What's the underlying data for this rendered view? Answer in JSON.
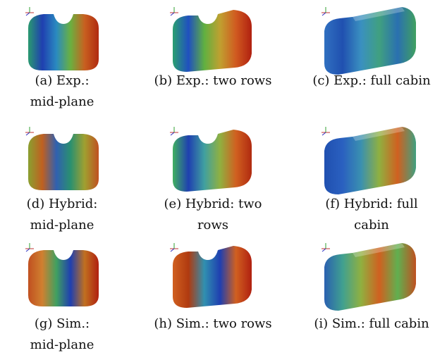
{
  "panels": [
    {
      "lines": [
        "(a) Exp.:",
        "mid-plane"
      ]
    },
    {
      "lines": [
        "(b) Exp.: two rows"
      ]
    },
    {
      "lines": [
        "(c) Exp.: full cabin"
      ]
    },
    {
      "lines": [
        "(d) Hybrid:",
        "mid-plane"
      ]
    },
    {
      "lines": [
        "(e) Hybrid: two",
        "rows"
      ]
    },
    {
      "lines": [
        "(f) Hybrid: full",
        "cabin"
      ]
    },
    {
      "lines": [
        "(g) Sim.:",
        "mid-plane"
      ]
    },
    {
      "lines": [
        "(h) Sim.: two rows"
      ]
    },
    {
      "lines": [
        "(i) Sim.: full cabin"
      ]
    }
  ]
}
